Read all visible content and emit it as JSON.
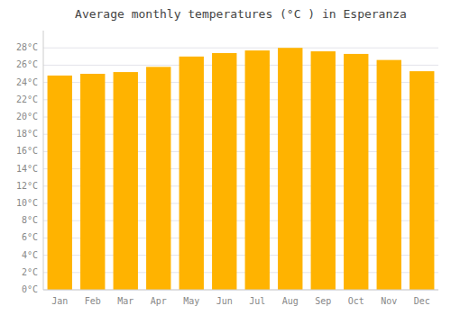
{
  "chart_data": {
    "type": "bar",
    "title": "Average monthly temperatures (°C ) in Esperanza",
    "categories": [
      "Jan",
      "Feb",
      "Mar",
      "Apr",
      "May",
      "Jun",
      "Jul",
      "Aug",
      "Sep",
      "Oct",
      "Nov",
      "Dec"
    ],
    "values": [
      24.8,
      25.0,
      25.2,
      25.8,
      27.0,
      27.4,
      27.7,
      28.0,
      27.6,
      27.3,
      26.6,
      25.3
    ],
    "color": "#FFB300",
    "ylim": [
      0,
      30
    ],
    "yticks": [
      {
        "value": 0,
        "label": "0°C"
      },
      {
        "value": 2,
        "label": "2°C"
      },
      {
        "value": 4,
        "label": "4°C"
      },
      {
        "value": 6,
        "label": "6°C"
      },
      {
        "value": 8,
        "label": "8°C"
      },
      {
        "value": 10,
        "label": "10°C"
      },
      {
        "value": 12,
        "label": "12°C"
      },
      {
        "value": 14,
        "label": "14°C"
      },
      {
        "value": 16,
        "label": "16°C"
      },
      {
        "value": 18,
        "label": "18°C"
      },
      {
        "value": 20,
        "label": "20°C"
      },
      {
        "value": 22,
        "label": "22°C"
      },
      {
        "value": 24,
        "label": "24°C"
      },
      {
        "value": 26,
        "label": "26°C"
      },
      {
        "value": 28,
        "label": "28°C"
      }
    ],
    "grid": true
  }
}
